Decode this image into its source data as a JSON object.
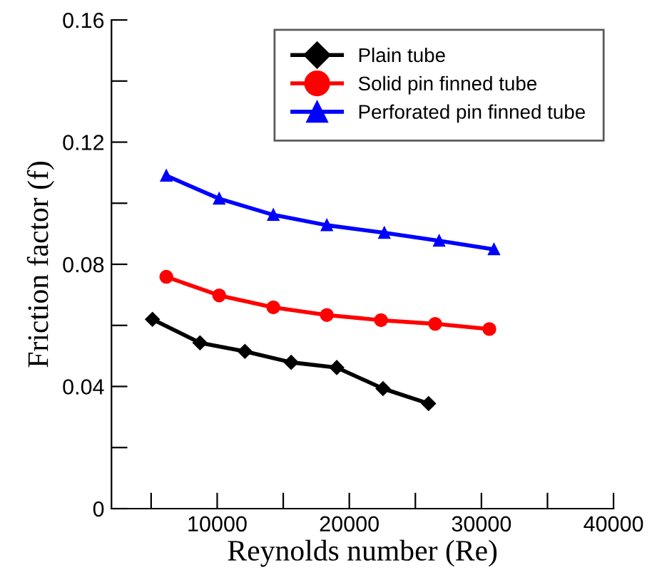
{
  "chart_data": {
    "type": "line",
    "xlabel": "Reynolds number (Re)",
    "ylabel": "Friction factor (f)",
    "xlim": [
      2000,
      40000
    ],
    "xticks": [
      {
        "value": 5000,
        "label": null
      },
      10000,
      {
        "value": 15000,
        "label": null
      },
      20000,
      {
        "value": 25000,
        "label": null
      },
      30000,
      {
        "value": 35000,
        "label": null
      },
      40000
    ],
    "ylim": [
      0,
      0.16
    ],
    "yticks": [
      0,
      {
        "value": 0.02,
        "label": null
      },
      0.04,
      {
        "value": 0.06,
        "label": null
      },
      0.08,
      {
        "value": 0.1,
        "label": null
      },
      0.12,
      {
        "value": 0.14,
        "label": null
      },
      0.16
    ],
    "grid": false,
    "legend": "top right",
    "line_style": "solid",
    "series": [
      {
        "name": "Plain tube",
        "color": "#000000",
        "marker": "diamond",
        "x": [
          5100,
          8700,
          12100,
          15600,
          19050,
          22550,
          26000
        ],
        "values": [
          0.062,
          0.0543,
          0.0515,
          0.0479,
          0.0462,
          0.0393,
          0.0344
        ]
      },
      {
        "name": "Solid pin finned tube",
        "color": "#ff0000",
        "marker": "circle",
        "x": [
          6150,
          10150,
          14250,
          18300,
          22400,
          26500,
          30600
        ],
        "values": [
          0.0759,
          0.0698,
          0.0659,
          0.0634,
          0.0617,
          0.0605,
          0.0588
        ]
      },
      {
        "name": "Perforated pin finned tube",
        "color": "#0000ff",
        "marker": "triangle",
        "x": [
          6150,
          10150,
          14250,
          18300,
          22650,
          26800,
          30950
        ],
        "values": [
          0.109,
          0.1015,
          0.0962,
          0.0928,
          0.0903,
          0.0877,
          0.0849
        ]
      }
    ]
  }
}
